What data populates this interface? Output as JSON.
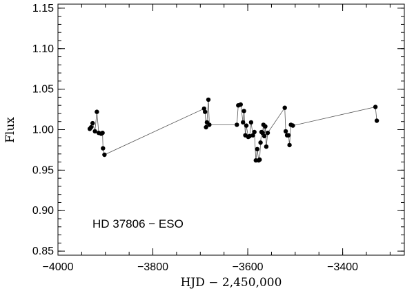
{
  "chart_data": {
    "type": "scatter",
    "title": "",
    "xlabel": "HJD − 2,450,000",
    "ylabel": "Flux",
    "annotation": "HD 37806 − ESO",
    "xlim": [
      -4000,
      -3270
    ],
    "ylim": [
      0.845,
      1.155
    ],
    "grid": false,
    "x_ticks": [
      -4000,
      -3800,
      -3600,
      -3400
    ],
    "x_tick_labels": [
      "−4000",
      "−3800",
      "−3600",
      "−3400"
    ],
    "y_ticks": [
      0.85,
      0.9,
      0.95,
      1.0,
      1.05,
      1.1,
      1.15
    ],
    "y_tick_labels": [
      "0.85",
      "0.90",
      "0.95",
      "1.00",
      "1.05",
      "1.10",
      "1.15"
    ],
    "connected": true,
    "marker_color": "#000000",
    "line_color": "#555555",
    "series": [
      {
        "points": [
          {
            "x": -3933,
            "y": 1.001
          },
          {
            "x": -3930,
            "y": 1.003
          },
          {
            "x": -3927,
            "y": 1.008
          },
          {
            "x": -3922,
            "y": 0.998
          },
          {
            "x": -3918,
            "y": 1.022
          },
          {
            "x": -3914,
            "y": 0.996
          },
          {
            "x": -3909,
            "y": 0.995
          },
          {
            "x": -3906,
            "y": 0.996
          },
          {
            "x": -3905,
            "y": 0.977
          },
          {
            "x": -3902,
            "y": 0.969
          },
          {
            "x": -3692,
            "y": 1.026
          },
          {
            "x": -3690,
            "y": 1.022
          },
          {
            "x": -3688,
            "y": 1.003
          },
          {
            "x": -3686,
            "y": 1.009
          },
          {
            "x": -3683,
            "y": 1.037
          },
          {
            "x": -3681,
            "y": 1.006
          },
          {
            "x": -3623,
            "y": 1.006
          },
          {
            "x": -3620,
            "y": 1.03
          },
          {
            "x": -3615,
            "y": 1.031
          },
          {
            "x": -3610,
            "y": 1.009
          },
          {
            "x": -3608,
            "y": 1.023
          },
          {
            "x": -3605,
            "y": 0.993
          },
          {
            "x": -3603,
            "y": 1.005
          },
          {
            "x": -3599,
            "y": 0.991
          },
          {
            "x": -3596,
            "y": 0.992
          },
          {
            "x": -3593,
            "y": 1.009
          },
          {
            "x": -3589,
            "y": 0.993
          },
          {
            "x": -3586,
            "y": 0.997
          },
          {
            "x": -3583,
            "y": 0.962
          },
          {
            "x": -3580,
            "y": 0.976
          },
          {
            "x": -3577,
            "y": 0.962
          },
          {
            "x": -3575,
            "y": 0.963
          },
          {
            "x": -3573,
            "y": 0.984
          },
          {
            "x": -3571,
            "y": 0.997
          },
          {
            "x": -3569,
            "y": 0.996
          },
          {
            "x": -3567,
            "y": 1.006
          },
          {
            "x": -3565,
            "y": 0.992
          },
          {
            "x": -3563,
            "y": 1.004
          },
          {
            "x": -3561,
            "y": 0.979
          },
          {
            "x": -3558,
            "y": 0.996
          },
          {
            "x": -3522,
            "y": 1.027
          },
          {
            "x": -3520,
            "y": 0.998
          },
          {
            "x": -3517,
            "y": 0.993
          },
          {
            "x": -3514,
            "y": 0.993
          },
          {
            "x": -3512,
            "y": 0.981
          },
          {
            "x": -3509,
            "y": 1.006
          },
          {
            "x": -3505,
            "y": 1.005
          },
          {
            "x": -3331,
            "y": 1.028
          },
          {
            "x": -3328,
            "y": 1.011
          }
        ]
      }
    ]
  }
}
